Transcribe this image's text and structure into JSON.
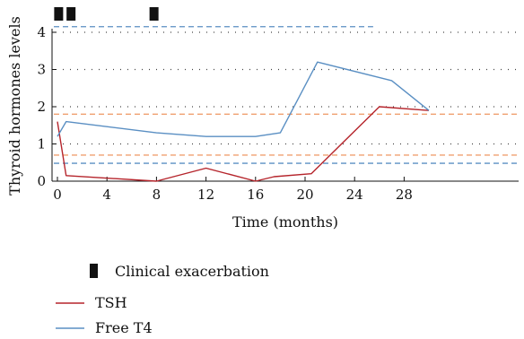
{
  "chart_data": {
    "type": "line",
    "xlabel": "Time (months)",
    "ylabel": "Thyroid hormones levels",
    "xlim": [
      0,
      30
    ],
    "ylim": [
      0,
      4.2
    ],
    "x_ticks": [
      "0",
      "4",
      "8",
      "12",
      "16",
      "20",
      "24",
      "28"
    ],
    "y_ticks": [
      "0",
      "1",
      "2",
      "3",
      "4"
    ],
    "grid": "dotted horizontal",
    "series": [
      {
        "name": "TSH",
        "color": "#b5242b",
        "points": [
          [
            0,
            1.6
          ],
          [
            0.7,
            0.15
          ],
          [
            8,
            0.0
          ],
          [
            12,
            0.35
          ],
          [
            16,
            0.0
          ],
          [
            17.5,
            0.12
          ],
          [
            20.5,
            0.2
          ],
          [
            26,
            2.0
          ],
          [
            30,
            1.9
          ]
        ]
      },
      {
        "name": "Free T4",
        "color": "#5a8fc3",
        "points": [
          [
            0,
            1.2
          ],
          [
            0.7,
            1.6
          ],
          [
            8,
            1.3
          ],
          [
            12,
            1.2
          ],
          [
            16,
            1.2
          ],
          [
            18,
            1.3
          ],
          [
            21,
            3.2
          ],
          [
            27,
            2.7
          ],
          [
            30,
            1.9
          ]
        ]
      }
    ],
    "reference_lines": [
      {
        "y": 4.15,
        "x_end": 25.5,
        "color": "#5a8fc3"
      },
      {
        "y": 1.8,
        "color": "#f0a070"
      },
      {
        "y": 0.7,
        "color": "#f0a070"
      },
      {
        "y": 0.48,
        "color": "#5a8fc3"
      }
    ],
    "events": {
      "name": "Clinical exacerbation",
      "x": [
        0.1,
        1.1,
        7.8
      ]
    },
    "legend": {
      "position": "bottom-left",
      "entries": [
        "Clinical exacerbation",
        "TSH",
        "Free T4"
      ]
    }
  }
}
